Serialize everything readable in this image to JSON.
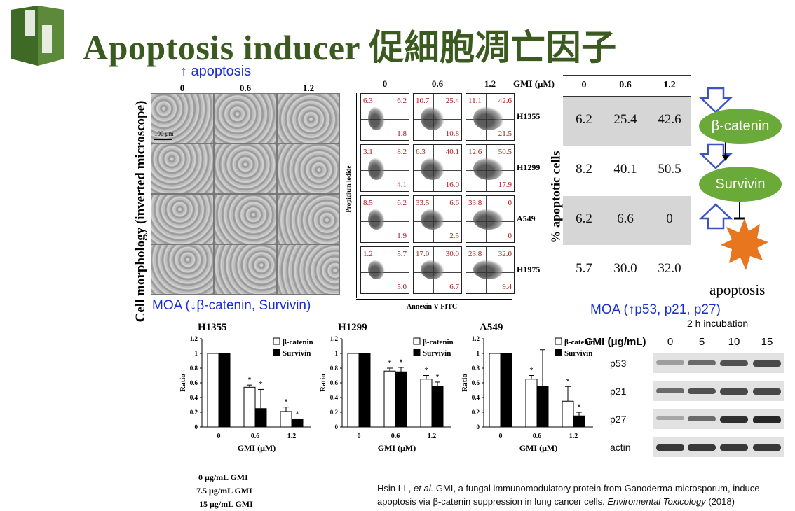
{
  "title": "Apoptosis inducer 促細胞凋亡因子",
  "apoptosis_arrow_label": "↑ apoptosis",
  "morphology": {
    "ylabel": "Cell morphology (inverted microscope)",
    "doses": [
      "0",
      "0.6",
      "1.2"
    ],
    "scale_bar": "100 μm",
    "moa": "MOA (↓β-catenin, Survivin)"
  },
  "flow": {
    "doses": [
      "0",
      "0.6",
      "1.2"
    ],
    "unit_label": "GMI (μM)",
    "cell_lines": [
      "H1355",
      "H1299",
      "A549",
      "H1975"
    ],
    "ylabel": "Propidium iodide",
    "xlabel": "Annexin V-FITC",
    "quadrants": [
      [
        [
          "6.3",
          "6.2",
          "1.8"
        ],
        [
          "10.7",
          "25.4",
          "10.8"
        ],
        [
          "11.1",
          "42.6",
          "21.5"
        ]
      ],
      [
        [
          "3.1",
          "8.2",
          "4.1"
        ],
        [
          "6.3",
          "40.1",
          "16.0"
        ],
        [
          "12.6",
          "50.5",
          "17.9"
        ]
      ],
      [
        [
          "8.5",
          "6.2",
          "1.9"
        ],
        [
          "33.5",
          "6.6",
          "2.5"
        ],
        [
          "33.8",
          "0",
          "0"
        ]
      ],
      [
        [
          "1.2",
          "5.7",
          "5.0"
        ],
        [
          "17.0",
          "30.0",
          "6.7"
        ],
        [
          "23.8",
          "32.0",
          "9.4"
        ]
      ]
    ]
  },
  "apoptotic_table": {
    "headers": [
      "0",
      "0.6",
      "1.2"
    ],
    "ylabel": "% apoptotic cells",
    "rows": [
      [
        "6.2",
        "25.4",
        "42.6"
      ],
      [
        "8.2",
        "40.1",
        "50.5"
      ],
      [
        "6.2",
        "6.6",
        "0"
      ],
      [
        "5.7",
        "30.0",
        "32.0"
      ]
    ]
  },
  "pathway": {
    "nodes": [
      "β-catenin",
      "Survivin"
    ],
    "outcome": "apoptosis",
    "moa": "MOA (↑p53, p21, p27)"
  },
  "chart_data": [
    {
      "type": "bar",
      "title": "H1355",
      "ylabel": "Ratio",
      "xlabel": "GMI (μM)",
      "categories": [
        "0",
        "0.6",
        "1.2"
      ],
      "ylim": [
        0,
        1.2
      ],
      "yticks": [
        "0",
        "0.2",
        "0.4",
        "0.6",
        "0.8",
        "1",
        "1.2"
      ],
      "series": [
        {
          "name": "β-catenin",
          "values": [
            1,
            0.54,
            0.21
          ],
          "errors": [
            0,
            0.03,
            0.06
          ],
          "sig": [
            false,
            true,
            true
          ]
        },
        {
          "name": "Survivin",
          "values": [
            1,
            0.25,
            0.1
          ],
          "errors": [
            0,
            0.26,
            0.01
          ],
          "sig": [
            false,
            true,
            true
          ]
        }
      ]
    },
    {
      "type": "bar",
      "title": "H1299",
      "ylabel": "Ratio",
      "xlabel": "GMI (μM)",
      "categories": [
        "0",
        "0.6",
        "1.2"
      ],
      "ylim": [
        0,
        1.2
      ],
      "yticks": [
        "0",
        "0.2",
        "0.4",
        "0.6",
        "0.8",
        "1",
        "1.2"
      ],
      "series": [
        {
          "name": "β-catenin",
          "values": [
            1,
            0.76,
            0.65
          ],
          "errors": [
            0,
            0.04,
            0.05
          ],
          "sig": [
            false,
            true,
            true
          ]
        },
        {
          "name": "Survivin",
          "values": [
            1,
            0.75,
            0.55
          ],
          "errors": [
            0,
            0.06,
            0.06
          ],
          "sig": [
            false,
            true,
            true
          ]
        }
      ]
    },
    {
      "type": "bar",
      "title": "A549",
      "ylabel": "Ratio",
      "xlabel": "GMI (μM)",
      "categories": [
        "0",
        "0.6",
        "1.2"
      ],
      "ylim": [
        0,
        1.2
      ],
      "yticks": [
        "0",
        "0.2",
        "0.4",
        "0.6",
        "0.8",
        "1",
        "1.2"
      ],
      "series": [
        {
          "name": "β-catenin",
          "values": [
            1,
            0.65,
            0.35
          ],
          "errors": [
            0,
            0.05,
            0.2
          ],
          "sig": [
            false,
            true,
            true
          ]
        },
        {
          "name": "Survivin",
          "values": [
            1,
            0.55,
            0.15
          ],
          "errors": [
            0,
            0.5,
            0.05
          ],
          "sig": [
            false,
            false,
            true
          ]
        }
      ]
    }
  ],
  "gmi_legend": [
    "0 μg/mL GMI",
    "7.5 μg/mL GMI",
    "15 μg/mL GMI"
  ],
  "western": {
    "incubation": "2 h incubation",
    "conc_label": "GMI (μg/mL)",
    "conc": [
      "0",
      "5",
      "10",
      "15"
    ],
    "proteins": [
      "p53",
      "p21",
      "p27",
      "actin"
    ],
    "intensity": [
      [
        0.25,
        0.55,
        0.7,
        0.75
      ],
      [
        0.55,
        0.7,
        0.75,
        0.75
      ],
      [
        0.2,
        0.55,
        0.9,
        0.95
      ],
      [
        0.85,
        0.85,
        0.85,
        0.85
      ]
    ]
  },
  "citation": {
    "authors": "Hsin I-L, ",
    "etal": "et al.",
    "text": " GMI, a fungal immunomodulatory protein from Ganoderma microsporum, induce apoptosis via β-catenin suppression in lung cancer cells. ",
    "journal": "Enviromental Toxicology",
    "year": " (2018)"
  },
  "colors": {
    "title": "#3a5a1f",
    "moa_blue": "#1a2fd0",
    "node_green": "#6aaa38",
    "arrow_blue": "#3d55c4",
    "burst_orange": "#e8761e",
    "table_gray": "#d6d6d6",
    "quadrant_red": "#b01616"
  }
}
